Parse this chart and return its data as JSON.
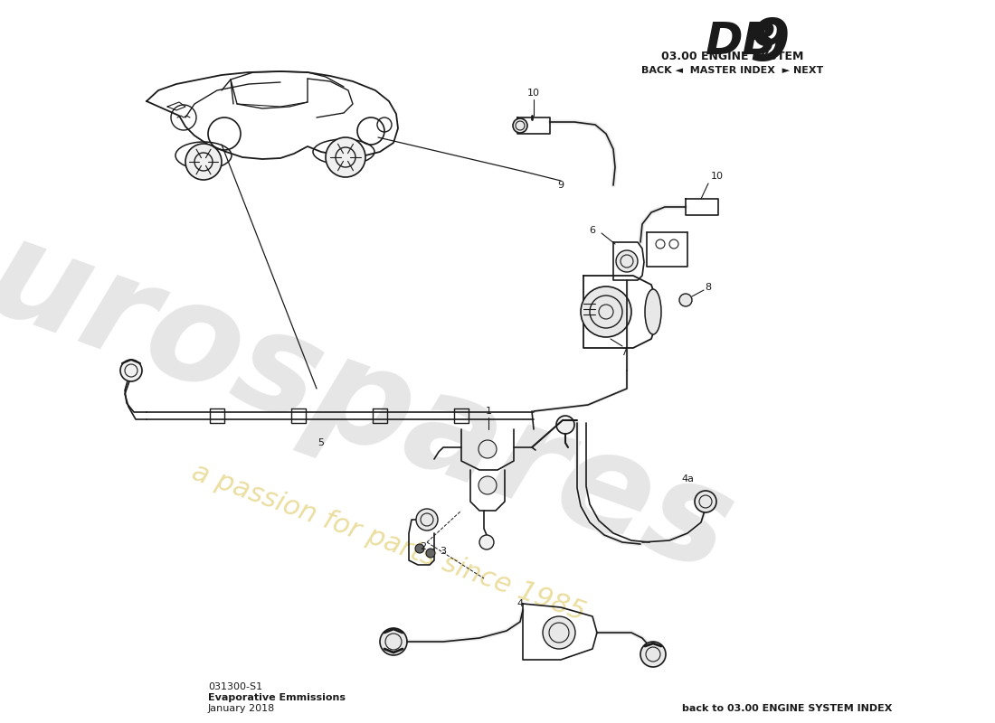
{
  "bg_color": "#ffffff",
  "line_color": "#1a1a1a",
  "watermark_gray": "#c8c8c8",
  "watermark_yellow": "#e8d890",
  "title_db": "DB",
  "title_9": "9",
  "subtitle": "03.00 ENGINE SYSTEM",
  "nav": "BACK ◄  MASTER INDEX  ► NEXT",
  "footer1": "031300-S1",
  "footer2": "Evaporative Emmissions",
  "footer3": "January 2018",
  "footer_right": "back to 03.00 ENGINE SYSTEM INDEX"
}
